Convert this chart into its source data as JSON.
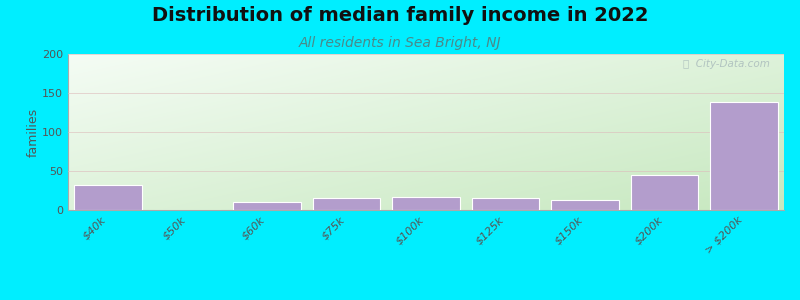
{
  "title": "Distribution of median family income in 2022",
  "subtitle": "All residents in Sea Bright, NJ",
  "categories": [
    "$40k",
    "$50k",
    "$60k",
    "$75k",
    "$100k",
    "$125k",
    "$150k",
    "$200k",
    "> $200k"
  ],
  "values": [
    32,
    0,
    10,
    15,
    17,
    16,
    13,
    45,
    138
  ],
  "bar_color": "#b39dcc",
  "bar_edgecolor": "#ffffff",
  "ylabel": "families",
  "ylim": [
    0,
    200
  ],
  "yticks": [
    0,
    50,
    100,
    150,
    200
  ],
  "background_outer": "#00eeff",
  "bg_top": "#f5fbf5",
  "bg_bottom": "#c8e8c0",
  "grid_color": "#ddbbbb",
  "title_fontsize": 14,
  "subtitle_fontsize": 10,
  "subtitle_color": "#4a8a8a",
  "watermark": "ⓘ  City-Data.com"
}
